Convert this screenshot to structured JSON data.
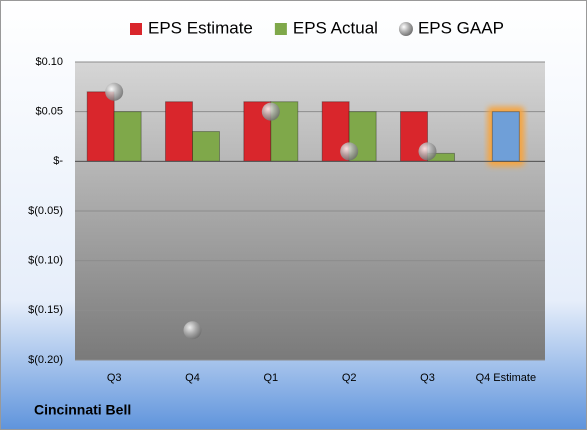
{
  "chart_data": {
    "type": "bar",
    "company": "Cincinnati Bell",
    "categories": [
      "Q3",
      "Q4",
      "Q1",
      "Q2",
      "Q3",
      "Q4 Estimate"
    ],
    "series": [
      {
        "name": "EPS Estimate",
        "color": "#d9262c",
        "values": [
          0.07,
          0.06,
          0.06,
          0.06,
          0.05,
          0.05
        ],
        "point_colors": [
          "#d9262c",
          "#d9262c",
          "#d9262c",
          "#d9262c",
          "#d9262c",
          "#6f9fd8"
        ]
      },
      {
        "name": "EPS Actual",
        "color": "#7fa84a",
        "values": [
          0.05,
          0.03,
          0.06,
          0.05,
          0.008,
          null
        ]
      },
      {
        "name": "EPS GAAP",
        "color": "#a6a6a6",
        "marker": "circle",
        "values": [
          0.07,
          -0.17,
          0.05,
          0.01,
          0.01,
          null
        ]
      }
    ],
    "ylim": [
      -0.2,
      0.1
    ],
    "yticks": [
      {
        "value": 0.1,
        "label": "$0.10"
      },
      {
        "value": 0.05,
        "label": "$0.05"
      },
      {
        "value": 0,
        "label": "$-"
      },
      {
        "value": -0.05,
        "label": "$(0.05)"
      },
      {
        "value": -0.1,
        "label": "$(0.10)"
      },
      {
        "value": -0.15,
        "label": "$(0.15)"
      },
      {
        "value": -0.2,
        "label": "$(0.20)"
      }
    ],
    "grid": true
  }
}
